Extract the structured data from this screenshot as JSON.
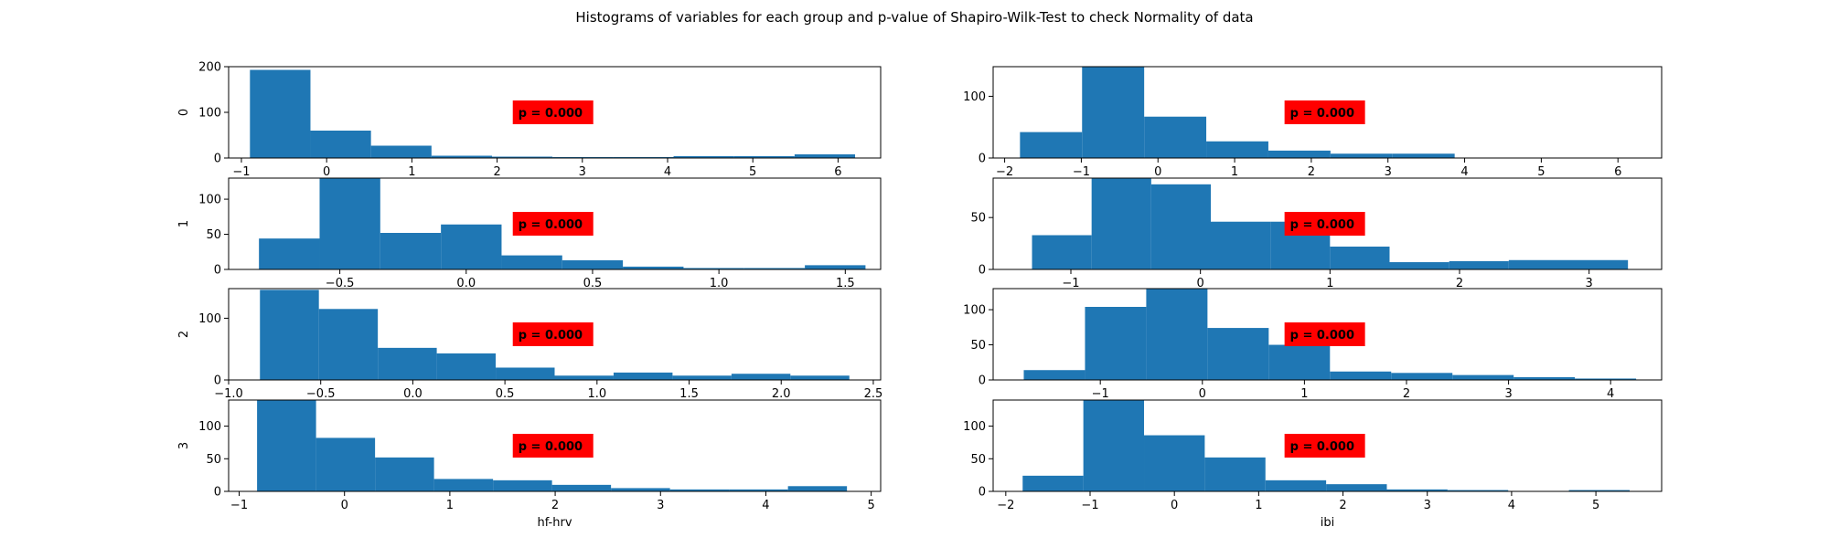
{
  "figure": {
    "title": "Histograms of variables for each group and p-value of Shapiro-Wilk-Test to check Normality of data",
    "bar_color": "#1f77b4",
    "annotation_color": "#ff0000"
  },
  "chart_data": [
    {
      "type": "bar",
      "column": 0,
      "row": 0,
      "ylabel": "0",
      "xlabel": "",
      "p_label": "p = 0.000",
      "xlim": [
        -1.15,
        6.5
      ],
      "ylim": [
        0,
        200
      ],
      "xticks": [
        -1,
        0,
        1,
        2,
        3,
        4,
        5,
        6
      ],
      "yticks": [
        0,
        100,
        200
      ],
      "bin_edges": [
        -0.9,
        -0.19,
        0.52,
        1.23,
        1.94,
        2.65,
        3.36,
        4.07,
        4.78,
        5.49,
        6.2
      ],
      "values": [
        193,
        60,
        27,
        5,
        3,
        2,
        2,
        4,
        4,
        8
      ]
    },
    {
      "type": "bar",
      "column": 0,
      "row": 1,
      "ylabel": "1",
      "xlabel": "",
      "p_label": "p = 0.000",
      "xlim": [
        -0.94,
        1.64
      ],
      "ylim": [
        0,
        130
      ],
      "xticks": [
        -0.5,
        0.0,
        0.5,
        1.0,
        1.5
      ],
      "yticks": [
        0,
        50,
        100
      ],
      "tick_labels": [
        "−0.5",
        "0.0",
        "0.5",
        "1.0",
        "1.5"
      ],
      "bin_edges": [
        -0.82,
        -0.58,
        -0.34,
        -0.1,
        0.14,
        0.38,
        0.62,
        0.86,
        1.1,
        1.34,
        1.58
      ],
      "values": [
        44,
        130,
        52,
        64,
        20,
        13,
        4,
        2,
        2,
        6
      ]
    },
    {
      "type": "bar",
      "column": 0,
      "row": 2,
      "ylabel": "2",
      "xlabel": "",
      "p_label": "p = 0.000",
      "xlim": [
        -1.0,
        2.54
      ],
      "ylim": [
        0,
        148
      ],
      "xticks": [
        -1.0,
        -0.5,
        0.0,
        0.5,
        1.0,
        1.5,
        2.0,
        2.5
      ],
      "yticks": [
        0,
        100
      ],
      "tick_labels": [
        "−1.0",
        "−0.5",
        "0.0",
        "0.5",
        "1.0",
        "1.5",
        "2.0",
        "2.5"
      ],
      "bin_edges": [
        -0.83,
        -0.51,
        -0.19,
        0.13,
        0.45,
        0.77,
        1.09,
        1.41,
        1.73,
        2.05,
        2.37
      ],
      "values": [
        146,
        115,
        52,
        43,
        20,
        7,
        12,
        7,
        10,
        7
      ]
    },
    {
      "type": "bar",
      "column": 0,
      "row": 3,
      "ylabel": "3",
      "xlabel": "hf-hrv",
      "p_label": "p = 0.000",
      "xlim": [
        -1.1,
        5.09
      ],
      "ylim": [
        0,
        140
      ],
      "xticks": [
        -1,
        0,
        1,
        2,
        3,
        4,
        5
      ],
      "yticks": [
        0,
        50,
        100
      ],
      "bin_edges": [
        -0.83,
        -0.27,
        0.29,
        0.85,
        1.41,
        1.97,
        2.53,
        3.09,
        3.65,
        4.21,
        4.77
      ],
      "values": [
        140,
        82,
        52,
        19,
        17,
        10,
        5,
        3,
        3,
        8
      ]
    },
    {
      "type": "bar",
      "column": 1,
      "row": 0,
      "ylabel": "",
      "xlabel": "",
      "p_label": "p = 0.000",
      "xlim": [
        -2.15,
        6.57
      ],
      "ylim": [
        0,
        148
      ],
      "xticks": [
        -2,
        -1,
        0,
        1,
        2,
        3,
        4,
        5,
        6
      ],
      "yticks": [
        0,
        100
      ],
      "bin_edges": [
        -1.8,
        -0.99,
        -0.18,
        0.63,
        1.44,
        2.25,
        3.06,
        3.87,
        4.68,
        5.49,
        6.3
      ],
      "values": [
        42,
        148,
        67,
        27,
        12,
        7,
        7,
        0,
        0,
        0
      ]
    },
    {
      "type": "bar",
      "column": 1,
      "row": 1,
      "ylabel": "",
      "xlabel": "",
      "p_label": "p = 0.000",
      "xlim": [
        -1.6,
        3.56
      ],
      "ylim": [
        0,
        88
      ],
      "xticks": [
        -1,
        0,
        1,
        2,
        3
      ],
      "yticks": [
        0,
        50
      ],
      "bin_edges": [
        -1.3,
        -0.84,
        -0.38,
        0.08,
        0.54,
        1.0,
        1.46,
        1.92,
        2.38,
        2.84,
        3.3
      ],
      "values": [
        33,
        88,
        82,
        46,
        46,
        22,
        7,
        8,
        9,
        9
      ]
    },
    {
      "type": "bar",
      "column": 1,
      "row": 2,
      "ylabel": "",
      "xlabel": "",
      "p_label": "p = 0.000",
      "xlim": [
        -2.05,
        4.5
      ],
      "ylim": [
        0,
        130
      ],
      "xticks": [
        -1,
        0,
        1,
        2,
        3,
        4
      ],
      "yticks": [
        0,
        50,
        100
      ],
      "bin_edges": [
        -1.75,
        -1.15,
        -0.55,
        0.05,
        0.65,
        1.25,
        1.85,
        2.45,
        3.05,
        3.65,
        4.25
      ],
      "values": [
        14,
        104,
        130,
        74,
        50,
        12,
        10,
        7,
        4,
        2
      ]
    },
    {
      "type": "bar",
      "column": 1,
      "row": 3,
      "ylabel": "",
      "xlabel": "ibi",
      "p_label": "p = 0.000",
      "xlim": [
        -2.15,
        5.78
      ],
      "ylim": [
        0,
        140
      ],
      "xticks": [
        -2,
        -1,
        0,
        1,
        2,
        3,
        4,
        5
      ],
      "yticks": [
        0,
        50,
        100
      ],
      "bin_edges": [
        -1.8,
        -1.08,
        -0.36,
        0.36,
        1.08,
        1.8,
        2.52,
        3.24,
        3.96,
        4.68,
        5.4
      ],
      "values": [
        24,
        140,
        86,
        52,
        17,
        11,
        3,
        2,
        0,
        2
      ]
    }
  ]
}
